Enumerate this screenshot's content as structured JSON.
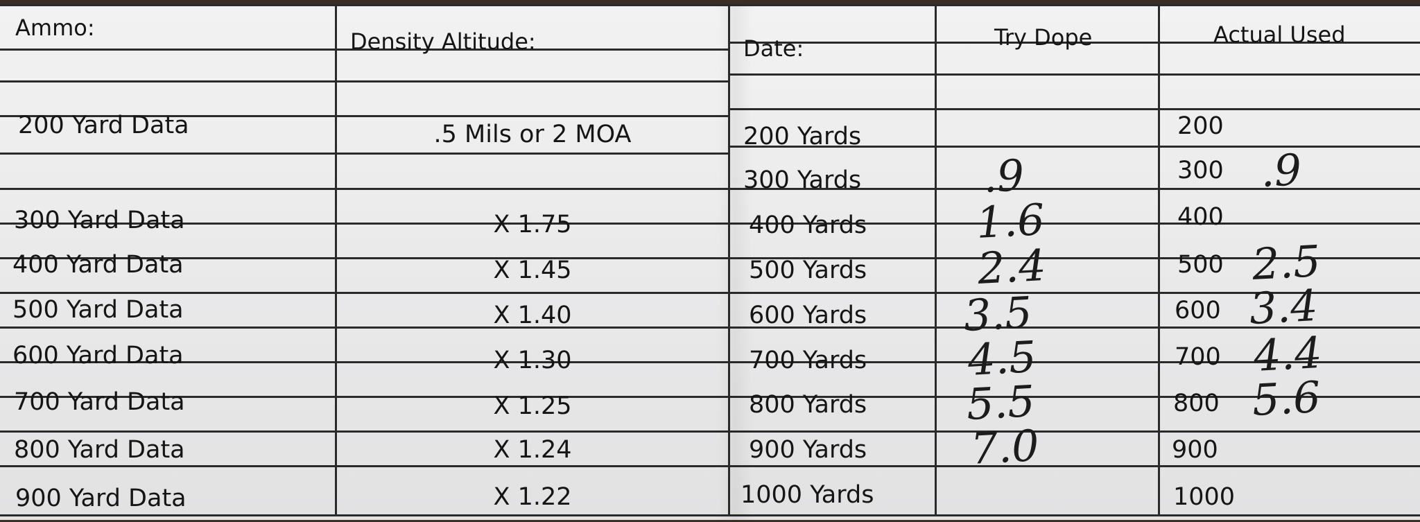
{
  "header": {
    "ammo": "Ammo:",
    "density_altitude": "Density Altitude:",
    "date": "Date:",
    "try_dope": "Try Dope",
    "actual_used": "Actual Used"
  },
  "yard_data": [
    {
      "label": "200 Yard Data",
      "factor": ".5 Mils or 2 MOA"
    },
    {
      "label": "300 Yard Data",
      "factor": "X 1.75"
    },
    {
      "label": "400 Yard Data",
      "factor": "X 1.45"
    },
    {
      "label": "500 Yard Data",
      "factor": "X 1.40"
    },
    {
      "label": "600 Yard Data",
      "factor": "X 1.30"
    },
    {
      "label": "700 Yard Data",
      "factor": "X 1.25"
    },
    {
      "label": "800 Yard Data",
      "factor": "X 1.24"
    },
    {
      "label": "900 Yard Data",
      "factor": "X 1.22"
    }
  ],
  "distances": [
    {
      "yards": "200 Yards",
      "try_dope": "",
      "actual_label": "200",
      "actual_value": ""
    },
    {
      "yards": "300 Yards",
      "try_dope": ".9",
      "actual_label": "300",
      "actual_value": ".9"
    },
    {
      "yards": "400 Yards",
      "try_dope": "1.6",
      "actual_label": "400",
      "actual_value": ""
    },
    {
      "yards": "500 Yards",
      "try_dope": "2.4",
      "actual_label": "500",
      "actual_value": "2.5"
    },
    {
      "yards": "600 Yards",
      "try_dope": "3.5",
      "actual_label": "600",
      "actual_value": "3.4"
    },
    {
      "yards": "700 Yards",
      "try_dope": "4.5",
      "actual_label": "700",
      "actual_value": "4.4"
    },
    {
      "yards": "800 Yards",
      "try_dope": "5.5",
      "actual_label": "800",
      "actual_value": "5.6"
    },
    {
      "yards": "900 Yards",
      "try_dope": "7.0",
      "actual_label": "900",
      "actual_value": ""
    },
    {
      "yards": "1000 Yards",
      "try_dope": "",
      "actual_label": "1000",
      "actual_value": ""
    }
  ]
}
